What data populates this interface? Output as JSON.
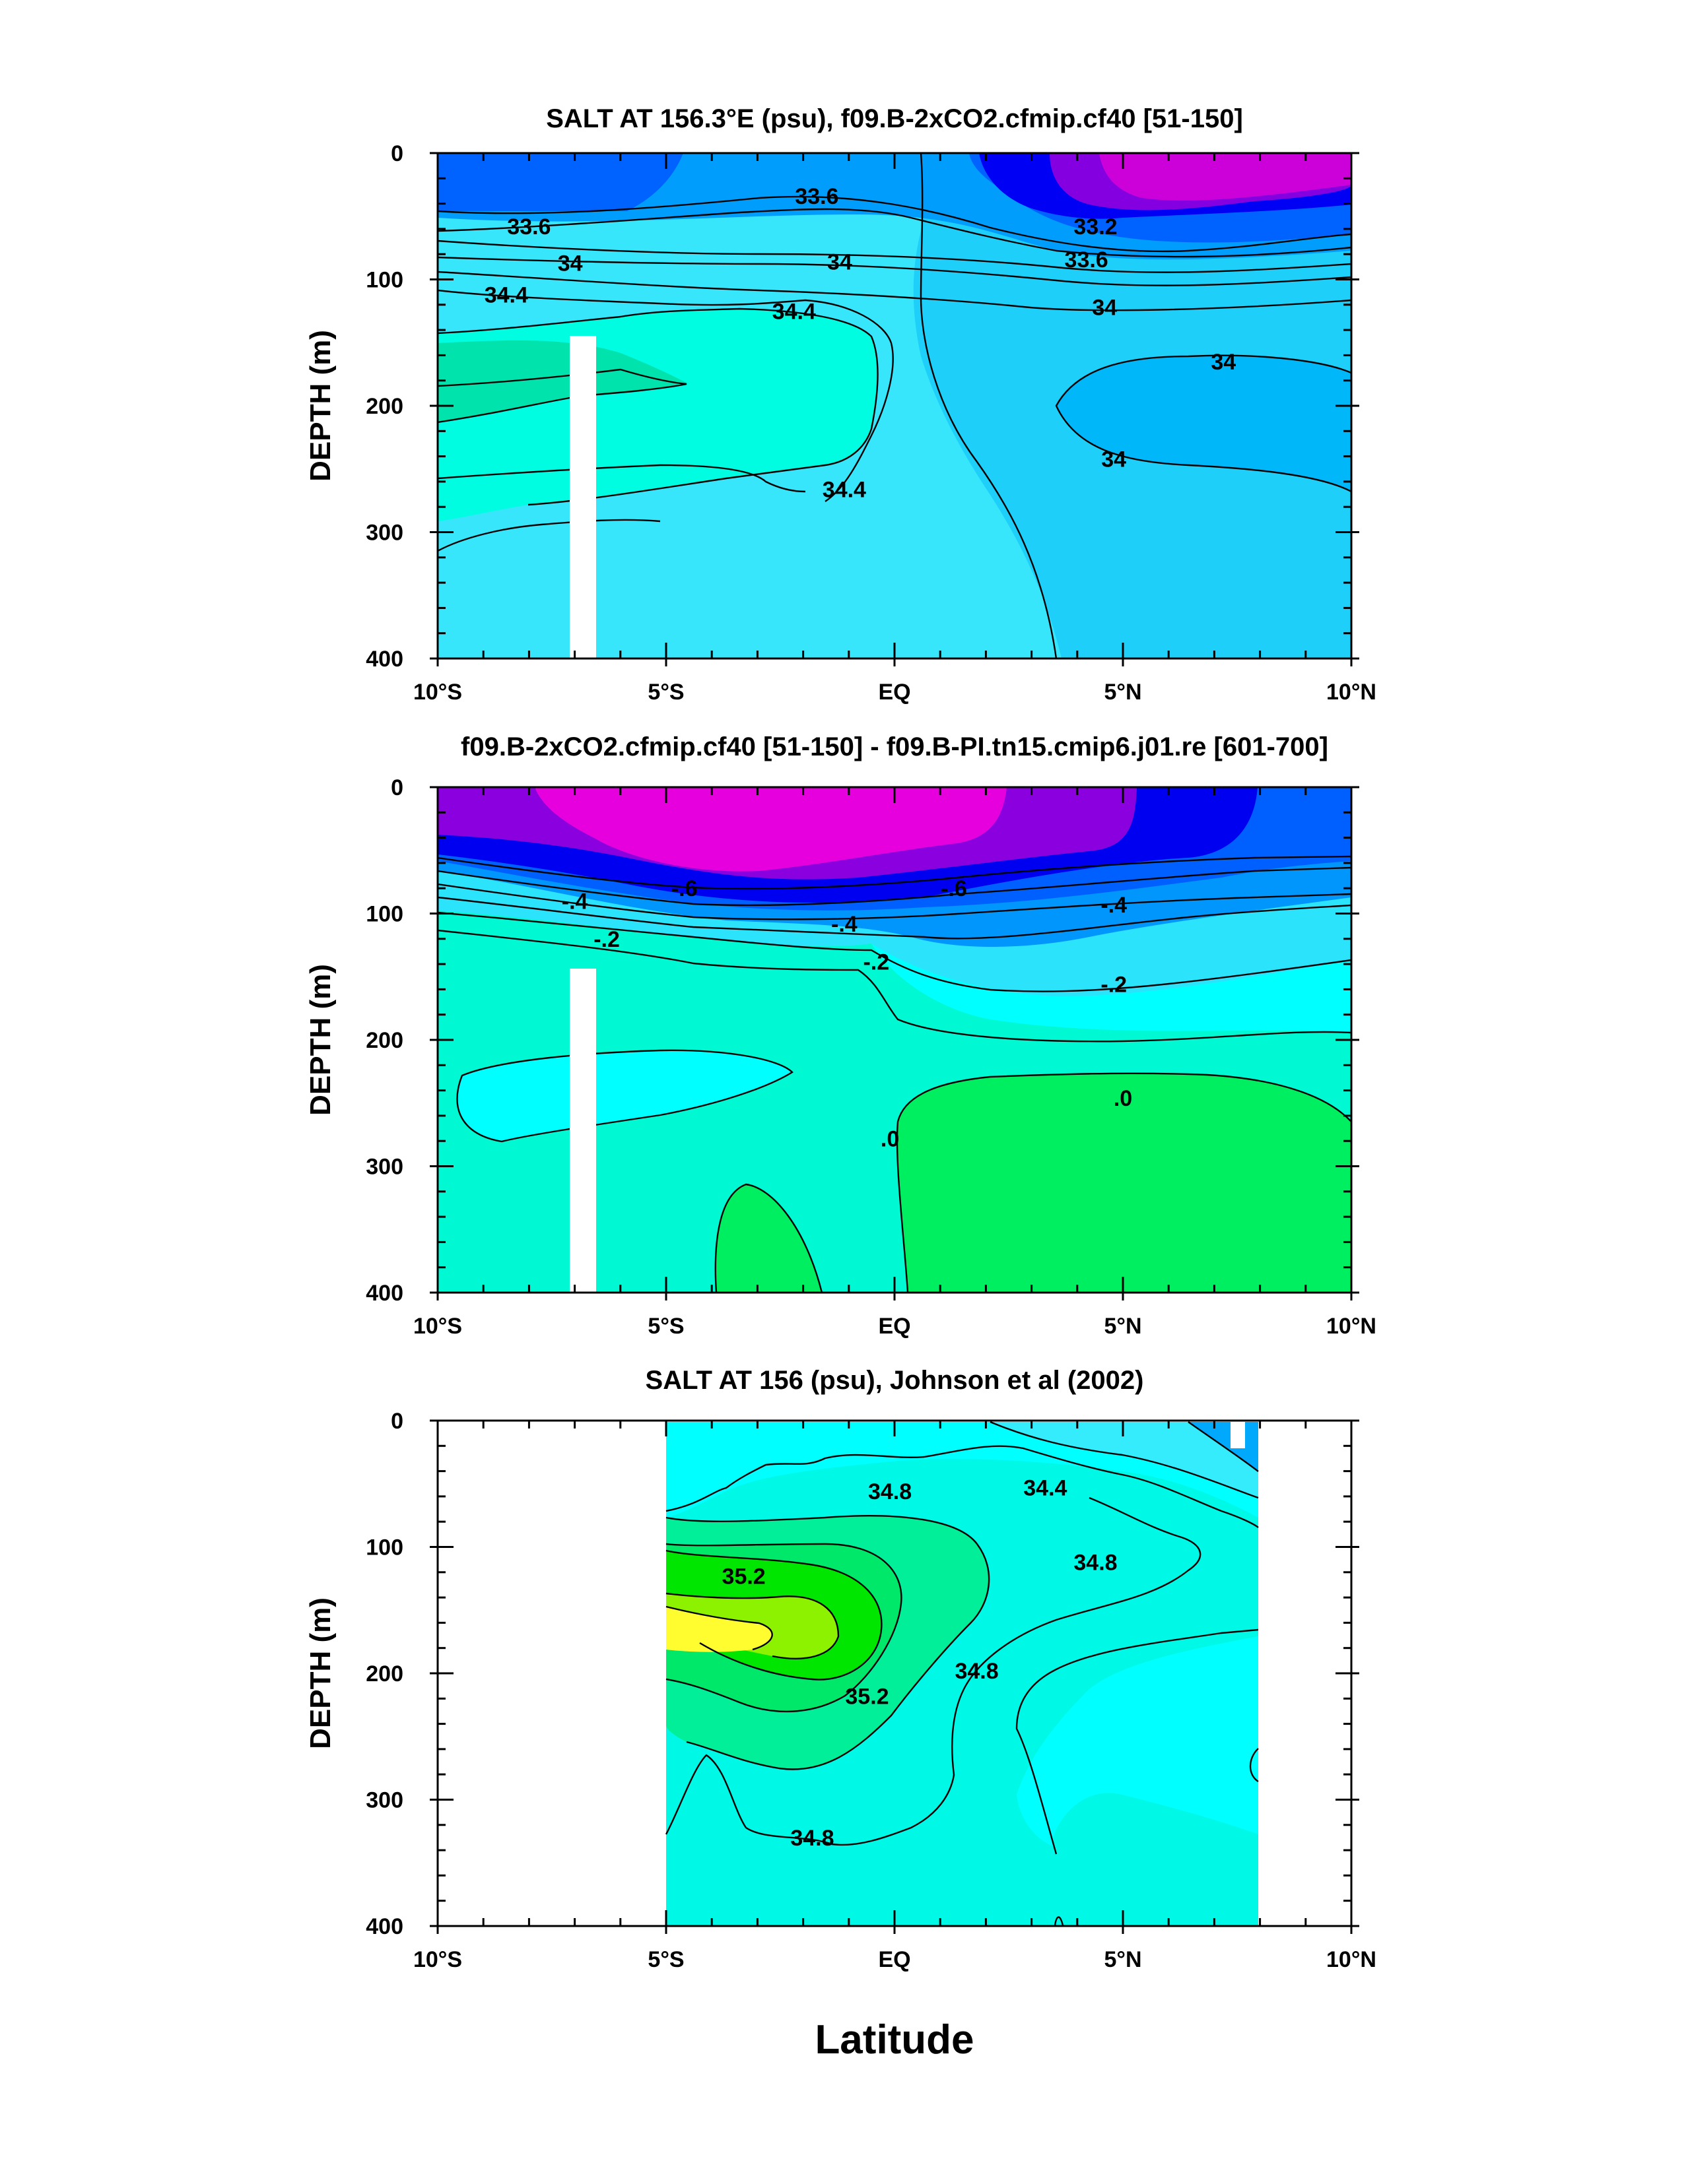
{
  "figure": {
    "xlabel": "Latitude",
    "x_ticks": [
      "10°S",
      "5°S",
      "EQ",
      "5°N",
      "10°N"
    ],
    "y_ticks": [
      "0",
      "100",
      "200",
      "300",
      "400"
    ]
  },
  "chart_data": [
    {
      "type": "heatmap",
      "title": "SALT AT 156.3°E (psu), f09.B-2xCO2.cfmip.cf40 [51-150]",
      "ylabel": "DEPTH (m)",
      "xlim": [
        -10,
        10
      ],
      "ylim": [
        400,
        0
      ],
      "units": "psu",
      "contour_labels": [
        {
          "text": "33.6",
          "lat": -8.0,
          "depth": 58
        },
        {
          "text": "34",
          "lat": -7.1,
          "depth": 87
        },
        {
          "text": "34.4",
          "lat": -8.5,
          "depth": 112
        },
        {
          "text": "33.6",
          "lat": -1.7,
          "depth": 34
        },
        {
          "text": "34",
          "lat": -1.2,
          "depth": 86
        },
        {
          "text": "34.4",
          "lat": -2.2,
          "depth": 125
        },
        {
          "text": "34.4",
          "lat": -1.1,
          "depth": 266
        },
        {
          "text": "33.2",
          "lat": 4.4,
          "depth": 58
        },
        {
          "text": "33.6",
          "lat": 4.2,
          "depth": 84
        },
        {
          "text": "34",
          "lat": 4.6,
          "depth": 122
        },
        {
          "text": "34",
          "lat": 7.2,
          "depth": 165
        },
        {
          "text": "34",
          "lat": 4.8,
          "depth": 242
        }
      ]
    },
    {
      "type": "heatmap",
      "title": "f09.B-2xCO2.cfmip.cf40 [51-150] - f09.B-PI.tn15.cmip6.j01.re [601-700]",
      "ylabel": "DEPTH (m)",
      "xlim": [
        -10,
        10
      ],
      "ylim": [
        400,
        0
      ],
      "units": "psu",
      "contour_labels": [
        {
          "text": "-.6",
          "lat": -4.6,
          "depth": 80
        },
        {
          "text": "-.6",
          "lat": 1.3,
          "depth": 80
        },
        {
          "text": "-.4",
          "lat": -7.0,
          "depth": 90
        },
        {
          "text": "-.4",
          "lat": -1.1,
          "depth": 108
        },
        {
          "text": "-.4",
          "lat": 4.8,
          "depth": 93
        },
        {
          "text": "-.2",
          "lat": -6.3,
          "depth": 120
        },
        {
          "text": "-.2",
          "lat": -0.4,
          "depth": 138
        },
        {
          "text": "-.2",
          "lat": 4.8,
          "depth": 156
        },
        {
          "text": ".0",
          "lat": -0.1,
          "depth": 278
        },
        {
          "text": ".0",
          "lat": 5.0,
          "depth": 246
        }
      ]
    },
    {
      "type": "heatmap",
      "title": "SALT AT 156 (psu), Johnson et al (2002)",
      "ylabel": "DEPTH (m)",
      "xlim": [
        -10,
        10
      ],
      "ylim": [
        400,
        0
      ],
      "units": "psu",
      "data_extent_lat": [
        -5,
        8
      ],
      "contour_labels": [
        {
          "text": "34.8",
          "lat": -0.1,
          "depth": 56
        },
        {
          "text": "34.4",
          "lat": 3.3,
          "depth": 53
        },
        {
          "text": "35.2",
          "lat": -3.3,
          "depth": 123
        },
        {
          "text": "34.8",
          "lat": 4.4,
          "depth": 112
        },
        {
          "text": "35.2",
          "lat": -0.6,
          "depth": 218
        },
        {
          "text": "34.8",
          "lat": 1.8,
          "depth": 198
        },
        {
          "text": "34.8",
          "lat": -1.8,
          "depth": 330
        }
      ]
    }
  ]
}
